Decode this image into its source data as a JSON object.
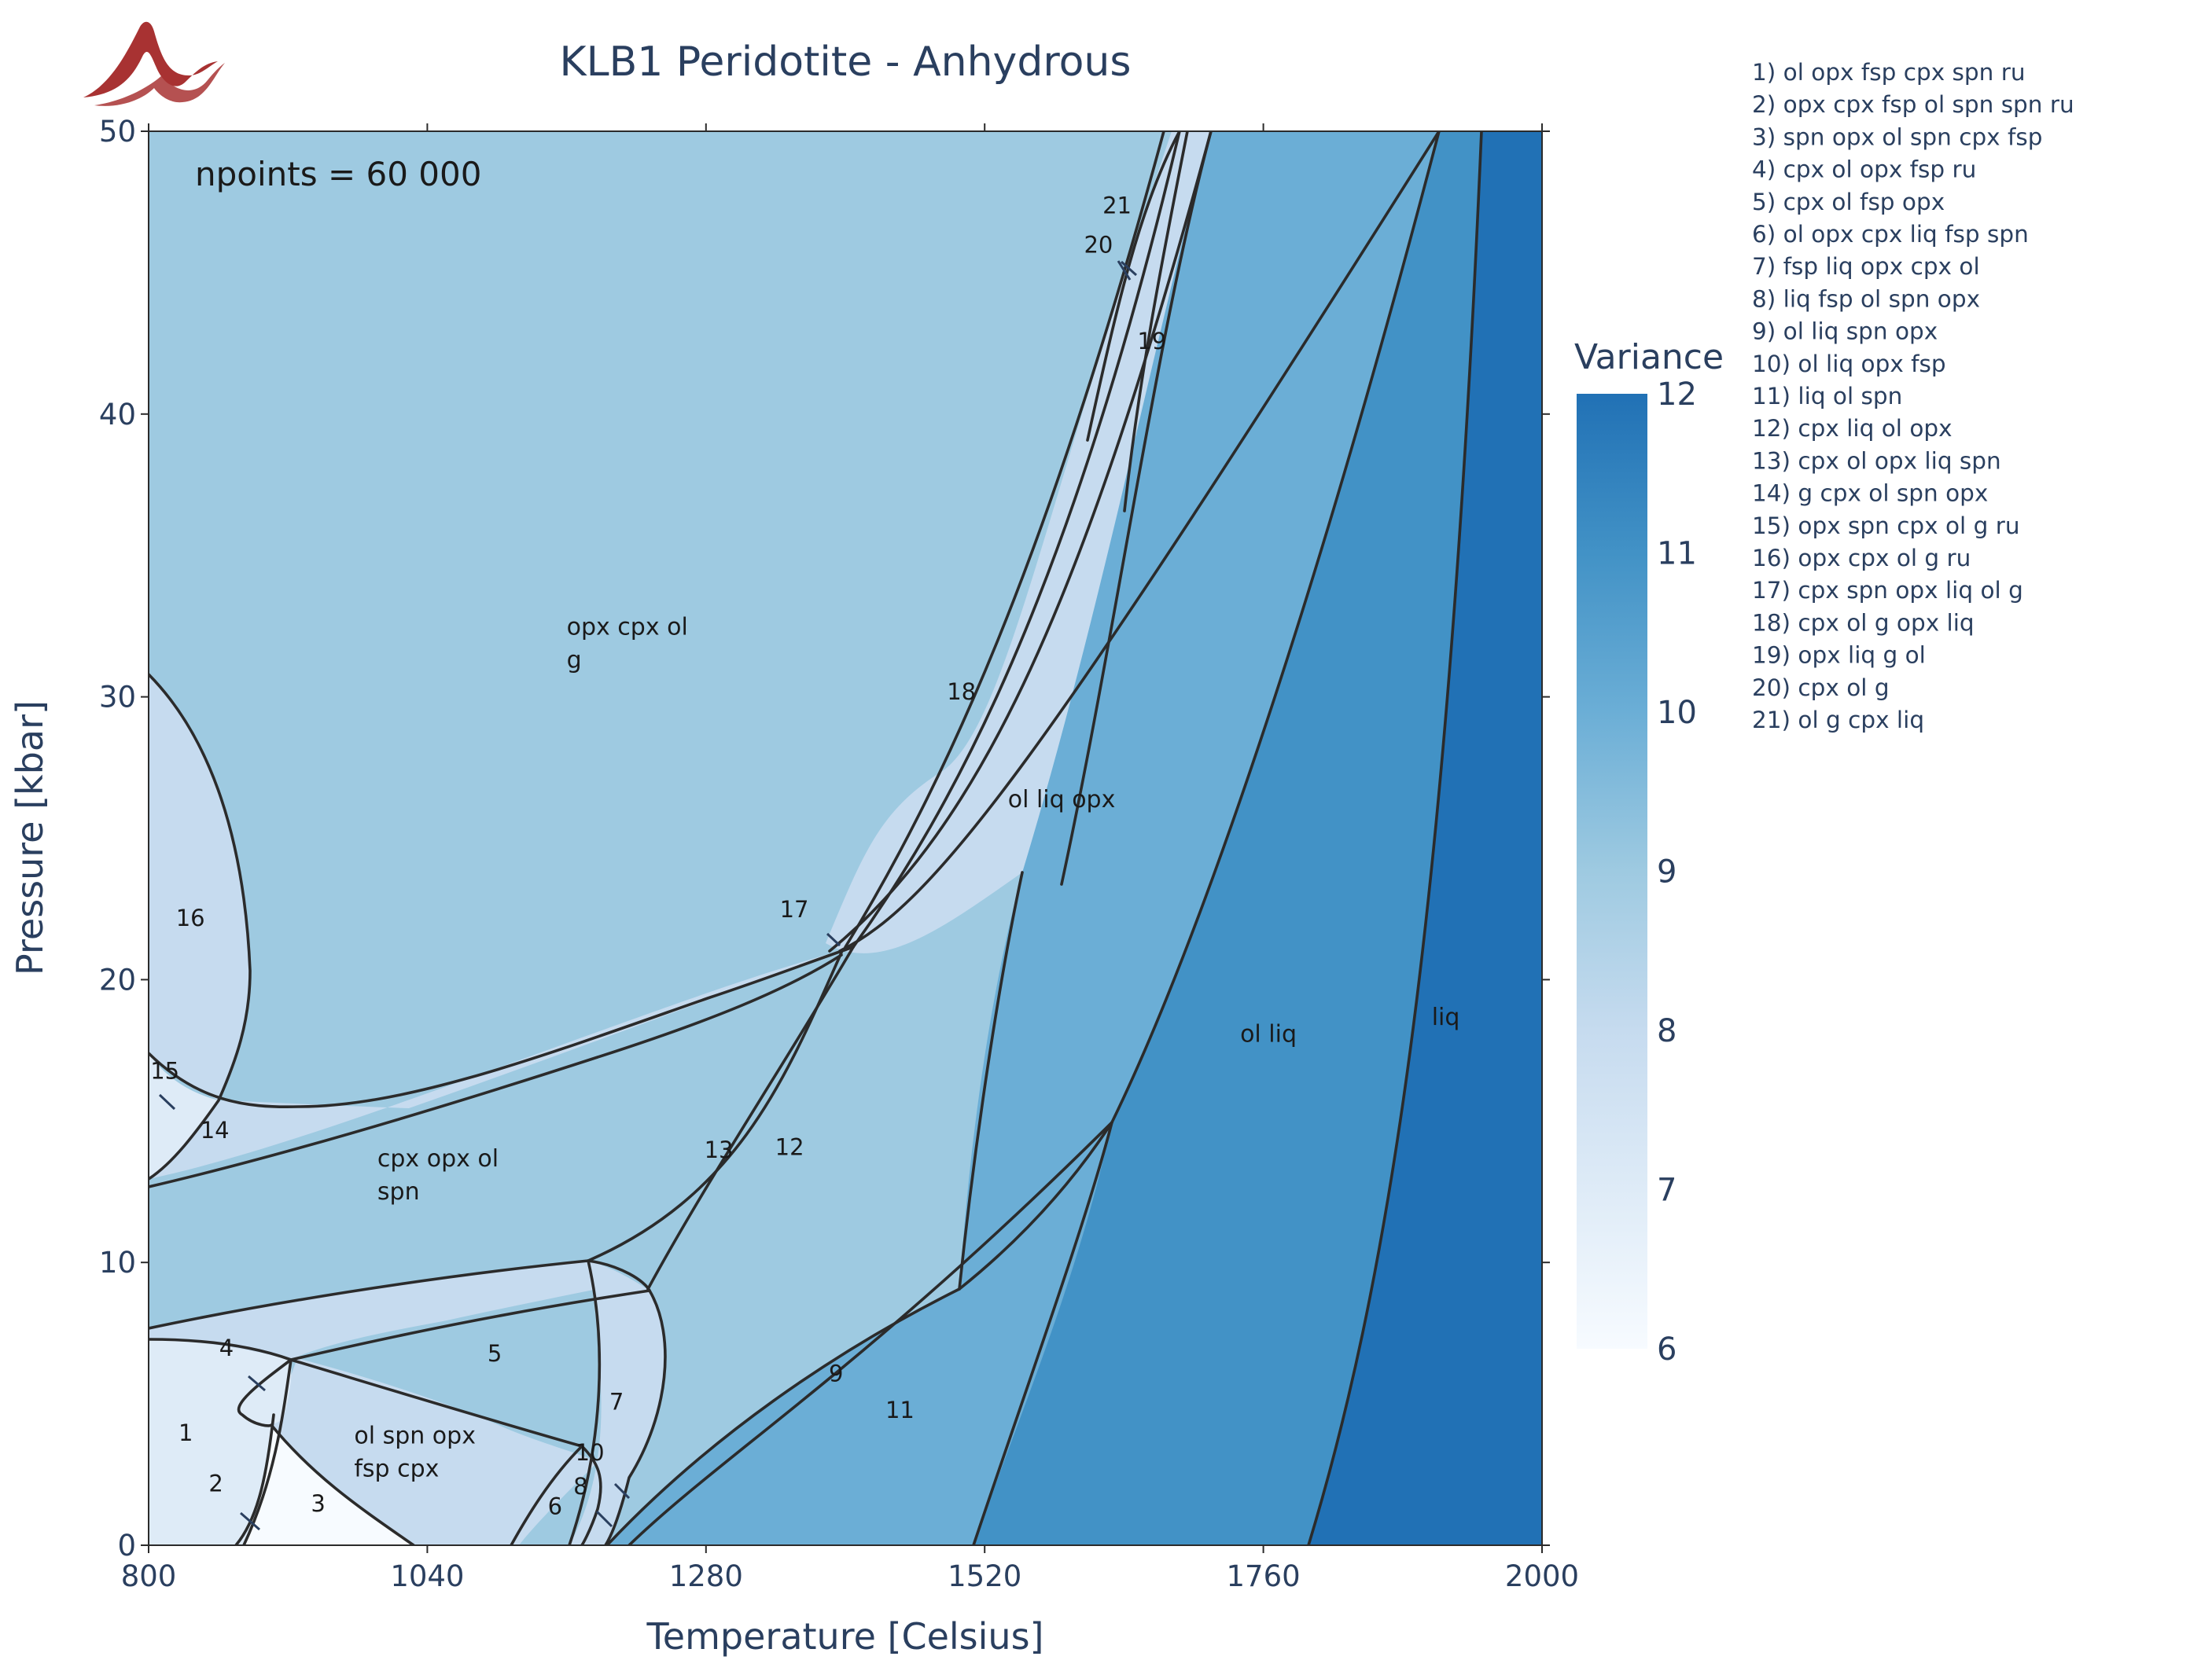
{
  "chart_data": {
    "type": "heatmap",
    "title": "KLB1 Peridotite - Anhydrous",
    "xlabel": "Temperature [Celsius]",
    "ylabel": "Pressure [kbar]",
    "xlim": [
      800,
      2000
    ],
    "ylim": [
      0,
      50
    ],
    "xticks": [
      800,
      1040,
      1280,
      1520,
      1760,
      2000
    ],
    "yticks": [
      0,
      10,
      20,
      30,
      40,
      50
    ],
    "annotation": "npoints = 60 000",
    "colorbar": {
      "title": "Variance",
      "range": [
        6,
        12
      ],
      "ticks": [
        6,
        7,
        8,
        9,
        10,
        11,
        12
      ],
      "colors": [
        "#f7fbff",
        "#deebf7",
        "#c6dbef",
        "#9ecae1",
        "#6baed6",
        "#4292c6",
        "#2171b5"
      ]
    },
    "fields": [
      {
        "text": "opx cpx ol",
        "line2": "g",
        "T": 1160,
        "P": 32.2,
        "variance": 9
      },
      {
        "text": "ol liq opx",
        "T": 1540,
        "P": 26.1,
        "variance": 10
      },
      {
        "text": "ol liq",
        "T": 1740,
        "P": 17.8,
        "variance": 11
      },
      {
        "text": "liq",
        "T": 1905,
        "P": 18.4,
        "variance": 12
      },
      {
        "text": "cpx opx ol",
        "line2": "spn",
        "T": 997,
        "P": 13.4,
        "variance": 9
      },
      {
        "text": "ol spn opx",
        "line2": "fsp cpx",
        "T": 977,
        "P": 3.6,
        "variance": 8
      }
    ],
    "numbered_labels": [
      {
        "n": "1",
        "T": 832,
        "P": 3.7
      },
      {
        "n": "2",
        "T": 858,
        "P": 1.9
      },
      {
        "n": "3",
        "T": 946,
        "P": 1.2
      },
      {
        "n": "4",
        "T": 867,
        "P": 6.7
      },
      {
        "n": "5",
        "T": 1098,
        "P": 6.5
      },
      {
        "n": "6",
        "T": 1150,
        "P": 1.1
      },
      {
        "n": "7",
        "T": 1203,
        "P": 4.8
      },
      {
        "n": "8",
        "T": 1172,
        "P": 1.8
      },
      {
        "n": "9",
        "T": 1392,
        "P": 5.8
      },
      {
        "n": "10",
        "T": 1180,
        "P": 3.0
      },
      {
        "n": "11",
        "T": 1447,
        "P": 4.5
      },
      {
        "n": "12",
        "T": 1352,
        "P": 13.8
      },
      {
        "n": "13",
        "T": 1291,
        "P": 13.7
      },
      {
        "n": "14",
        "T": 857,
        "P": 14.4
      },
      {
        "n": "15",
        "T": 814,
        "P": 16.5
      },
      {
        "n": "16",
        "T": 836,
        "P": 21.9
      },
      {
        "n": "17",
        "T": 1356,
        "P": 22.2
      },
      {
        "n": "18",
        "T": 1500,
        "P": 29.9
      },
      {
        "n": "19",
        "T": 1664,
        "P": 42.3
      },
      {
        "n": "20",
        "T": 1618,
        "P": 45.7
      },
      {
        "n": "21",
        "T": 1634,
        "P": 47.1
      }
    ],
    "legend": [
      "1) ol opx fsp cpx spn ru",
      "2) opx cpx fsp ol spn spn ru",
      "3) spn opx ol spn cpx fsp",
      "4) cpx ol opx fsp ru",
      "5) cpx ol fsp opx",
      "6) ol opx cpx liq fsp spn",
      "7) fsp liq opx cpx ol",
      "8) liq fsp ol spn opx",
      "9) ol liq spn opx",
      "10) ol liq opx fsp",
      "11) liq ol spn",
      "12) cpx liq ol opx",
      "13) cpx ol opx liq spn",
      "14) g cpx ol spn opx",
      "15) opx spn cpx ol g ru",
      "16) opx cpx ol g ru",
      "17) cpx spn opx liq ol g",
      "18) cpx ol g opx liq",
      "19) opx liq g ol",
      "20) cpx ol g",
      "21) ol g cpx liq"
    ],
    "logo_color": "#a83232"
  }
}
